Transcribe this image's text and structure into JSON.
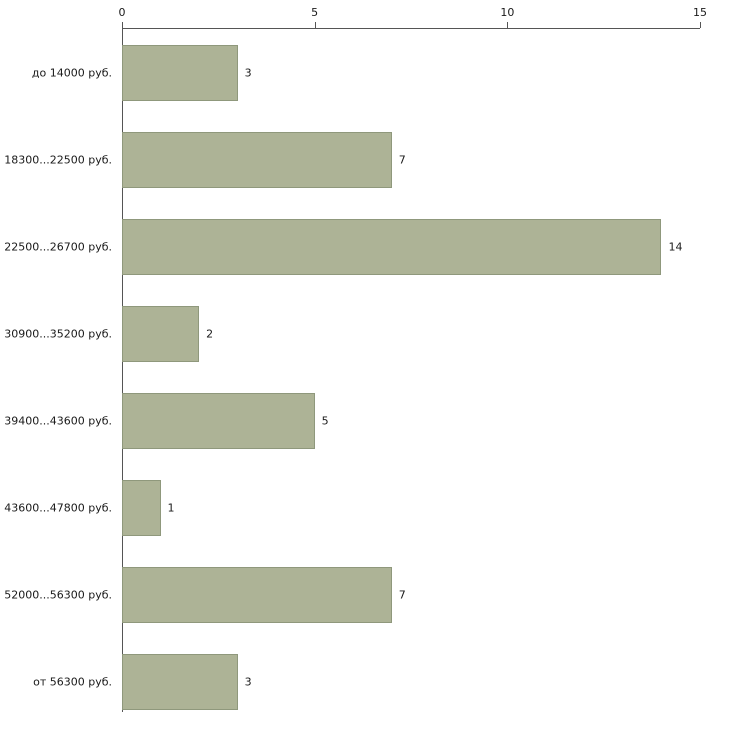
{
  "chart_data": {
    "type": "bar",
    "orientation": "horizontal",
    "categories": [
      "до 14000 руб.",
      "18300...22500 руб.",
      "22500...26700 руб.",
      "30900...35200 руб.",
      "39400...43600 руб.",
      "43600...47800 руб.",
      "52000...56300 руб.",
      "от 56300 руб."
    ],
    "values": [
      3,
      7,
      14,
      2,
      5,
      1,
      7,
      3
    ],
    "title": "",
    "xlabel": "",
    "ylabel": "",
    "xlim": [
      0,
      15
    ],
    "x_ticks": [
      0,
      5,
      10,
      15
    ],
    "grid": false,
    "legend": false,
    "bar_color": "#adb396",
    "bar_border_color": "#8f987c",
    "axis_color": "#555555",
    "text_color": "#1a1a1a"
  }
}
